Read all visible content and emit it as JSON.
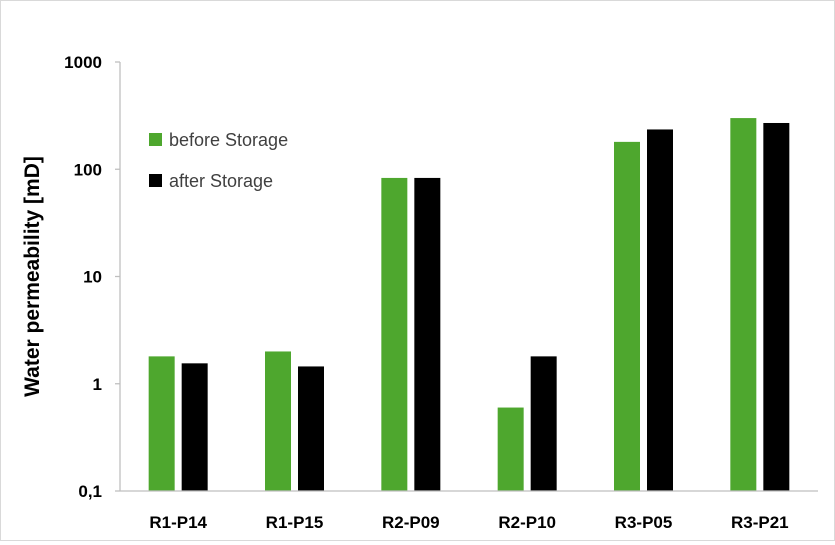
{
  "chart_data": {
    "type": "bar",
    "title": "",
    "xlabel": "",
    "ylabel": "Water permeability [mD]",
    "yscale": "log",
    "ylim": [
      0.1,
      1000
    ],
    "yticks": [
      0.1,
      1,
      10,
      100,
      1000
    ],
    "ytick_labels": [
      "0,1",
      "1",
      "10",
      "100",
      "1000"
    ],
    "categories": [
      "R1-P14",
      "R1-P15",
      "R2-P09",
      "R2-P10",
      "R3-P05",
      "R3-P21"
    ],
    "series": [
      {
        "name": "before Storage",
        "color": "#4ea72e",
        "values": [
          1.8,
          2.0,
          83,
          0.6,
          180,
          300
        ]
      },
      {
        "name": "after Storage",
        "color": "#000000",
        "values": [
          1.55,
          1.45,
          83,
          1.8,
          235,
          270
        ]
      }
    ],
    "legend_position": "top-left",
    "grid": false
  }
}
